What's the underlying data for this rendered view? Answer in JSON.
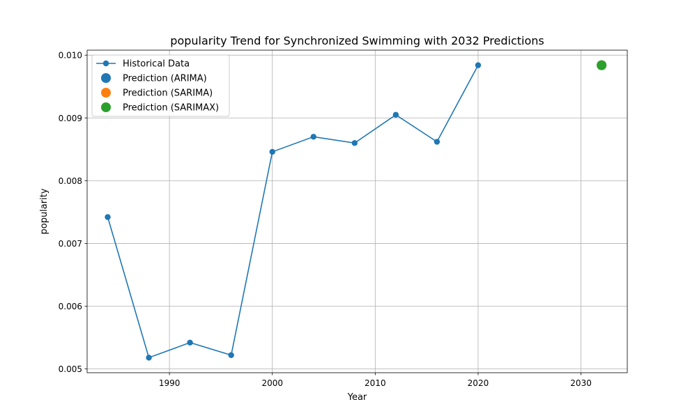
{
  "chart_data": {
    "type": "line",
    "title": "popularity Trend for Synchronized Swimming with 2032 Predictions",
    "xlabel": "Year",
    "ylabel": "popularity",
    "xlim": [
      1982,
      2034.5
    ],
    "ylim": [
      0.00494,
      0.01008
    ],
    "xticks": [
      1990,
      2000,
      2010,
      2020,
      2030
    ],
    "xtick_labels": [
      "1990",
      "2000",
      "2010",
      "2020",
      "2030"
    ],
    "yticks": [
      0.005,
      0.006,
      0.007,
      0.008,
      0.009,
      0.01
    ],
    "ytick_labels": [
      "0.005",
      "0.006",
      "0.007",
      "0.008",
      "0.009",
      "0.010"
    ],
    "grid": true,
    "legend_position": "top-left",
    "series": [
      {
        "name": "Historical Data",
        "kind": "line-marker",
        "color": "#1f77b4",
        "x": [
          1984,
          1988,
          1992,
          1996,
          2000,
          2004,
          2008,
          2012,
          2016,
          2020
        ],
        "y": [
          0.00742,
          0.00518,
          0.00542,
          0.00522,
          0.00846,
          0.0087,
          0.0086,
          0.00905,
          0.00862,
          0.00984
        ]
      },
      {
        "name": "Prediction (ARIMA)",
        "kind": "point",
        "color": "#1f77b4",
        "x": [
          2032
        ],
        "y": [
          0.00984
        ]
      },
      {
        "name": "Prediction (SARIMA)",
        "kind": "point",
        "color": "#ff7f0e",
        "x": [
          2032
        ],
        "y": [
          0.00984
        ]
      },
      {
        "name": "Prediction (SARIMAX)",
        "kind": "point",
        "color": "#2ca02c",
        "x": [
          2032
        ],
        "y": [
          0.00984
        ]
      }
    ]
  }
}
